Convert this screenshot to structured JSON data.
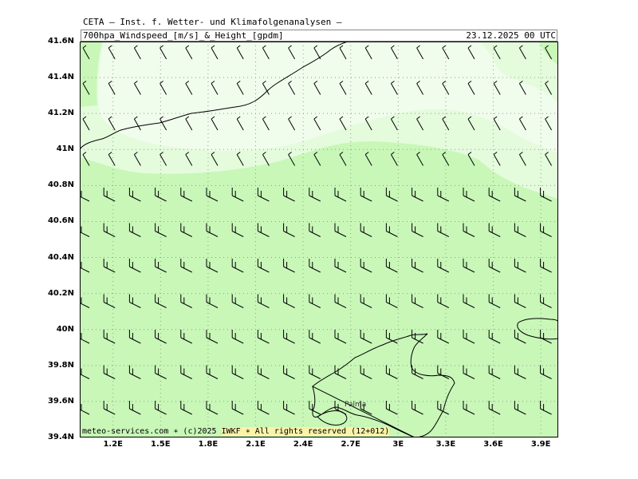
{
  "header": {
    "org": "CETA – Inst. f. Wetter- und Klimafolgenanalysen –",
    "param": "700hpa_Windspeed_[m/s]_&_Height_[gpdm]",
    "date": "23.12.2025 00 UTC"
  },
  "axes": {
    "y_labels": [
      "41.6N",
      "41.4N",
      "41.2N",
      "41N",
      "40.8N",
      "40.6N",
      "40.4N",
      "40.2N",
      "40N",
      "39.8N",
      "39.6N",
      "39.4N"
    ],
    "y_values": [
      41.6,
      41.4,
      41.2,
      41.0,
      40.8,
      40.6,
      40.4,
      40.2,
      40.0,
      39.8,
      39.6,
      39.4
    ],
    "x_labels": [
      "1.2E",
      "1.5E",
      "1.8E",
      "2.1E",
      "2.4E",
      "2.7E",
      "3E",
      "3.3E",
      "3.6E",
      "3.9E"
    ],
    "x_values": [
      1.2,
      1.5,
      1.8,
      2.1,
      2.4,
      2.7,
      3.0,
      3.3,
      3.6,
      3.9
    ],
    "lon_range": [
      0.99,
      4.01
    ],
    "lat_range": [
      39.4,
      41.6
    ]
  },
  "map": {
    "city": "Palma",
    "colors": {
      "light_zone": "#e4fbdc",
      "dark_zone": "#c8f7b8",
      "grid": "#999999",
      "coast": "#000000"
    },
    "wind_barbs": {
      "north_zone_direction": "northwest",
      "south_zone_direction": "west",
      "lowest_speed_m_s": 5,
      "highest_speed_m_s": 10
    }
  },
  "footer": {
    "left": "meteo-services.com ∗ (c)2025 ",
    "highlight": "IWKF ∗ All rights reserved (12+012)"
  }
}
